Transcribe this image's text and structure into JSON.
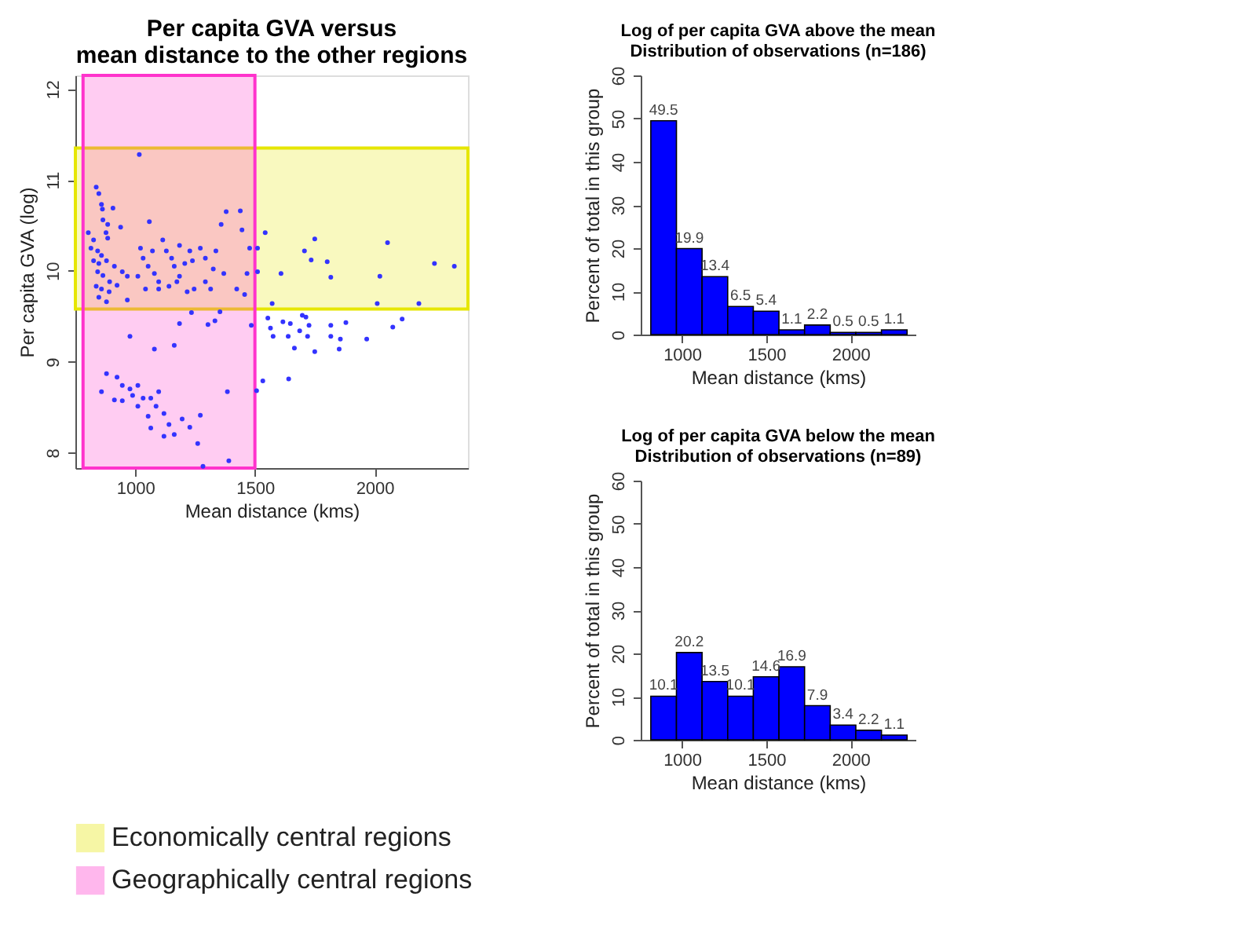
{
  "chart_data": [
    {
      "type": "scatter",
      "title": [
        "Per capita GVA versus",
        "mean distance to the other regions"
      ],
      "xlabel": "Mean distance (kms)",
      "ylabel": "Per capita GVA (log)",
      "xlim": [
        750,
        2390
      ],
      "ylim": [
        7.83,
        12.15
      ],
      "xticks": [
        1000,
        1500,
        2000
      ],
      "yticks": [
        8,
        9,
        10,
        11,
        12
      ],
      "marker": "circle",
      "legend": "bottom",
      "bands": [
        {
          "axis": "y",
          "from": 9.58,
          "to": 11.35,
          "label": "Economically central regions",
          "color": "#e6e600"
        },
        {
          "axis": "x",
          "from": 782,
          "to": 1500,
          "label": "Geographically central regions",
          "color": "#ff33cc"
        }
      ],
      "series": [
        {
          "color": "#3333ff",
          "x": [
            1017,
            837,
            848,
            859,
            863,
            907,
            865,
            885,
            939,
            1059,
            804,
            826,
            878,
            885,
            815,
            843,
            859,
            826,
            848,
            880,
            913,
            946,
            967,
            843,
            865,
            893,
            837,
            859,
            891,
            924,
            848,
            880,
            967,
            1011,
            1022,
            1033,
            1054,
            1080,
            1098,
            1072,
            1115,
            1130,
            1152,
            1163,
            1185,
            1141,
            1098,
            1043,
            1185,
            1228,
            1239,
            1207,
            1174,
            1217,
            1246,
            1272,
            1293,
            1337,
            1326,
            1370,
            1293,
            1315,
            1359,
            1380,
            1439,
            1446,
            1424,
            1457,
            1467,
            1478,
            1511,
            1543,
            1511,
            1609,
            1572,
            1707,
            1750,
            1735,
            1802,
            1817,
            2022,
            2054,
            2250,
            2333,
            2011,
            2185,
            978,
            1080,
            1163,
            880,
            859,
            924,
            946,
            978,
            1011,
            989,
            1033,
            1011,
            1065,
            1087,
            1098,
            913,
            946,
            1054,
            1120,
            1141,
            1065,
            1120,
            1163,
            1196,
            1228,
            1272,
            1261,
            1283,
            1391,
            1385,
            1185,
            1304,
            1333,
            1354,
            1485,
            1533,
            1507,
            1641,
            1554,
            1565,
            1576,
            1617,
            1648,
            1639,
            1665,
            1687,
            1698,
            1713,
            1726,
            1720,
            1750,
            1817,
            1817,
            1857,
            1852,
            1880,
            1967,
            2076,
            2115,
            1235
          ],
          "values": [
            11.28,
            10.92,
            10.85,
            10.73,
            10.68,
            10.69,
            10.56,
            10.51,
            10.48,
            10.54,
            10.42,
            10.34,
            10.42,
            10.36,
            10.25,
            10.22,
            10.17,
            10.11,
            10.08,
            10.11,
            10.05,
            9.99,
            9.94,
            9.99,
            9.95,
            9.88,
            9.83,
            9.8,
            9.77,
            9.84,
            9.71,
            9.66,
            9.68,
            9.94,
            10.25,
            10.14,
            10.05,
            9.97,
            9.88,
            10.22,
            10.34,
            10.22,
            10.14,
            10.05,
            9.94,
            9.83,
            9.8,
            9.8,
            10.28,
            10.22,
            10.11,
            10.08,
            9.88,
            9.77,
            9.8,
            10.25,
            10.14,
            10.22,
            10.02,
            9.97,
            9.88,
            9.8,
            10.51,
            10.65,
            10.66,
            10.45,
            9.8,
            9.74,
            9.97,
            10.25,
            10.25,
            10.42,
            9.99,
            9.97,
            9.64,
            10.22,
            10.35,
            10.12,
            10.1,
            9.93,
            9.94,
            10.31,
            10.08,
            10.05,
            9.64,
            9.64,
            9.28,
            9.14,
            9.18,
            8.87,
            8.67,
            8.83,
            8.74,
            8.7,
            8.74,
            8.63,
            8.6,
            8.51,
            8.6,
            8.51,
            8.67,
            8.58,
            8.57,
            8.4,
            8.43,
            8.31,
            8.27,
            8.18,
            8.2,
            8.37,
            8.28,
            8.41,
            8.1,
            7.85,
            7.91,
            8.67,
            9.42,
            9.41,
            9.45,
            9.55,
            9.4,
            8.79,
            8.68,
            8.81,
            9.48,
            9.37,
            9.28,
            9.44,
            9.42,
            9.28,
            9.15,
            9.34,
            9.51,
            9.49,
            9.4,
            9.28,
            9.11,
            9.4,
            9.28,
            9.25,
            9.14,
            9.43,
            9.25,
            9.38,
            9.47,
            9.54
          ]
        }
      ]
    },
    {
      "type": "histogram",
      "title": [
        "Log of per capita GVA above the mean",
        "Distribution of observations (n=186)"
      ],
      "xlabel": "Mean distance (kms)",
      "ylabel": "Percent of total in this group",
      "xlim": [
        755,
        2385
      ],
      "ylim": [
        0,
        60
      ],
      "xticks": [
        1000,
        1500,
        2000
      ],
      "yticks": [
        0,
        10,
        20,
        30,
        40,
        50,
        60
      ],
      "data_labels": true,
      "bins": [
        815,
        967,
        1119,
        1271,
        1423,
        1575,
        1727,
        1879,
        2031,
        2183,
        2335
      ],
      "series": [
        {
          "color": "#0000ff",
          "values": [
            49.5,
            19.9,
            13.4,
            6.5,
            5.4,
            1.1,
            2.2,
            0.5,
            0.5,
            1.1
          ]
        }
      ]
    },
    {
      "type": "histogram",
      "title": [
        "Log of per capita GVA below the mean",
        "Distribution of observations (n=89)"
      ],
      "xlabel": "Mean distance (kms)",
      "ylabel": "Percent of total in this group",
      "xlim": [
        755,
        2385
      ],
      "ylim": [
        0,
        60
      ],
      "xticks": [
        1000,
        1500,
        2000
      ],
      "yticks": [
        0,
        10,
        20,
        30,
        40,
        50,
        60
      ],
      "data_labels": true,
      "bins": [
        815,
        967,
        1119,
        1271,
        1423,
        1575,
        1727,
        1879,
        2031,
        2183,
        2335
      ],
      "series": [
        {
          "color": "#0000ff",
          "values": [
            10.1,
            20.2,
            13.5,
            10.1,
            14.6,
            16.9,
            7.9,
            3.4,
            2.2,
            1.1
          ]
        }
      ]
    }
  ]
}
